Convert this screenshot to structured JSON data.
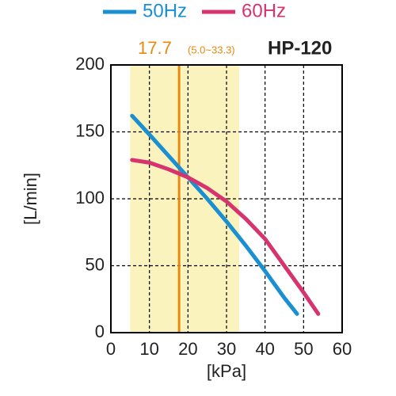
{
  "chart_data": {
    "type": "line",
    "model": "HP-120",
    "marker": 17.7,
    "range": [
      5.0,
      33.3
    ],
    "range_label": "(5.0~33.3)",
    "xlabel": "[kPa]",
    "ylabel": "[L/min]",
    "xlim": [
      0,
      60
    ],
    "ylim": [
      0,
      200
    ],
    "xticks": [
      0,
      10,
      20,
      30,
      40,
      50,
      60
    ],
    "yticks": [
      0,
      50,
      100,
      150,
      200
    ],
    "grid": true,
    "band_color": "#fbf3bd",
    "marker_color": "#e8890c",
    "series": [
      {
        "name": "50Hz",
        "color": "#1a8fd2",
        "x": [
          5.5,
          10,
          15,
          20,
          25,
          30,
          35,
          40,
          45,
          48.3
        ],
        "values": [
          162,
          148,
          132,
          116,
          100,
          83,
          65,
          46,
          26,
          14
        ]
      },
      {
        "name": "60Hz",
        "color": "#d6336f",
        "x": [
          5.5,
          10,
          15,
          20,
          25,
          30,
          35,
          40,
          45,
          50,
          53.8
        ],
        "values": [
          129,
          127,
          122,
          116,
          108,
          98,
          85,
          70,
          50,
          30,
          14
        ]
      }
    ]
  }
}
